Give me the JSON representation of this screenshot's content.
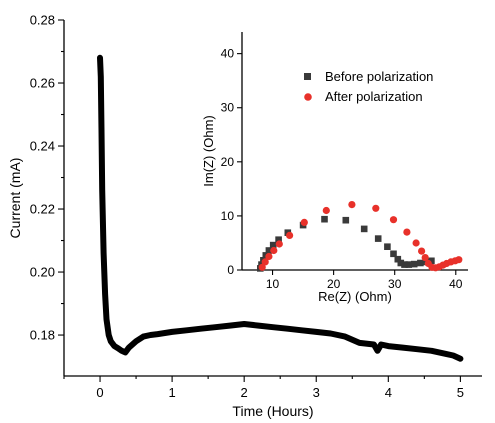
{
  "chart_data": [
    {
      "id": "main",
      "type": "line",
      "title": "",
      "xlabel": "Time (Hours)",
      "ylabel": "Current (mA)",
      "xlim": [
        -0.5,
        5.3
      ],
      "ylim": [
        0.167,
        0.28
      ],
      "xticks": [
        0,
        1,
        2,
        3,
        4,
        5
      ],
      "xtick_labels": [
        "0",
        "1",
        "2",
        "3",
        "4",
        "5"
      ],
      "yticks": [
        0.18,
        0.2,
        0.22,
        0.24,
        0.26,
        0.28
      ],
      "ytick_labels": [
        "0.18",
        "0.20",
        "0.22",
        "0.24",
        "0.26",
        "0.28"
      ],
      "series": [
        {
          "color": "#000000",
          "x": [
            0.0,
            0.01,
            0.02,
            0.03,
            0.05,
            0.07,
            0.09,
            0.12,
            0.15,
            0.2,
            0.25,
            0.3,
            0.35,
            0.4,
            0.5,
            0.6,
            0.7,
            0.8,
            1.0,
            1.2,
            1.4,
            1.6,
            1.8,
            2.0,
            2.2,
            2.4,
            2.6,
            2.8,
            3.0,
            3.2,
            3.4,
            3.6,
            3.8,
            3.85,
            3.9,
            4.0,
            4.2,
            4.4,
            4.6,
            4.8,
            4.9,
            5.0
          ],
          "y": [
            0.268,
            0.262,
            0.245,
            0.226,
            0.206,
            0.193,
            0.185,
            0.18,
            0.178,
            0.1765,
            0.1758,
            0.175,
            0.1745,
            0.176,
            0.178,
            0.1795,
            0.18,
            0.1803,
            0.181,
            0.1815,
            0.182,
            0.1825,
            0.183,
            0.1835,
            0.183,
            0.1825,
            0.182,
            0.1815,
            0.181,
            0.1805,
            0.1795,
            0.1775,
            0.177,
            0.175,
            0.177,
            0.1765,
            0.176,
            0.1755,
            0.175,
            0.174,
            0.1735,
            0.1725
          ]
        }
      ]
    },
    {
      "id": "inset",
      "type": "scatter",
      "title": "",
      "xlabel": "Re(Z) (Ohm)",
      "ylabel": "Im(Z) (Ohm)",
      "xlim": [
        5,
        42
      ],
      "ylim": [
        0,
        44
      ],
      "xticks": [
        10,
        20,
        30,
        40
      ],
      "xtick_labels": [
        "10",
        "20",
        "30",
        "40"
      ],
      "yticks": [
        0,
        10,
        20,
        30,
        40
      ],
      "ytick_labels": [
        "0",
        "10",
        "20",
        "30",
        "40"
      ],
      "legend_position": "top-right",
      "series": [
        {
          "name": "Before polarization",
          "marker": "square",
          "color": "#3a3a3a",
          "x": [
            8.0,
            8.2,
            8.5,
            8.9,
            9.4,
            10.1,
            11.0,
            12.5,
            15.0,
            18.5,
            22.0,
            25.0,
            27.3,
            28.8,
            29.8,
            30.5,
            31.0,
            31.6,
            32.3,
            33.2,
            34.2,
            35.2,
            36.0
          ],
          "y": [
            0.3,
            1.0,
            1.8,
            2.7,
            3.6,
            4.6,
            5.6,
            6.9,
            8.3,
            9.4,
            9.2,
            7.6,
            5.8,
            4.3,
            3.0,
            2.0,
            1.3,
            1.0,
            1.0,
            1.1,
            1.3,
            1.5,
            1.7
          ]
        },
        {
          "name": "After polarization",
          "marker": "circle",
          "color": "#e8312a",
          "x": [
            8.3,
            8.8,
            9.4,
            10.2,
            11.1,
            12.8,
            15.2,
            18.8,
            23.0,
            26.9,
            29.8,
            32.0,
            33.5,
            34.4,
            35.0,
            35.5,
            36.1,
            36.7,
            37.3,
            37.9,
            38.5,
            39.2,
            39.9,
            40.5
          ],
          "y": [
            0.5,
            1.5,
            2.5,
            3.6,
            4.8,
            6.4,
            8.8,
            11.0,
            12.1,
            11.4,
            9.3,
            7.0,
            5.0,
            3.5,
            2.3,
            1.2,
            0.5,
            0.4,
            0.6,
            0.9,
            1.2,
            1.5,
            1.7,
            1.9
          ]
        }
      ]
    }
  ]
}
